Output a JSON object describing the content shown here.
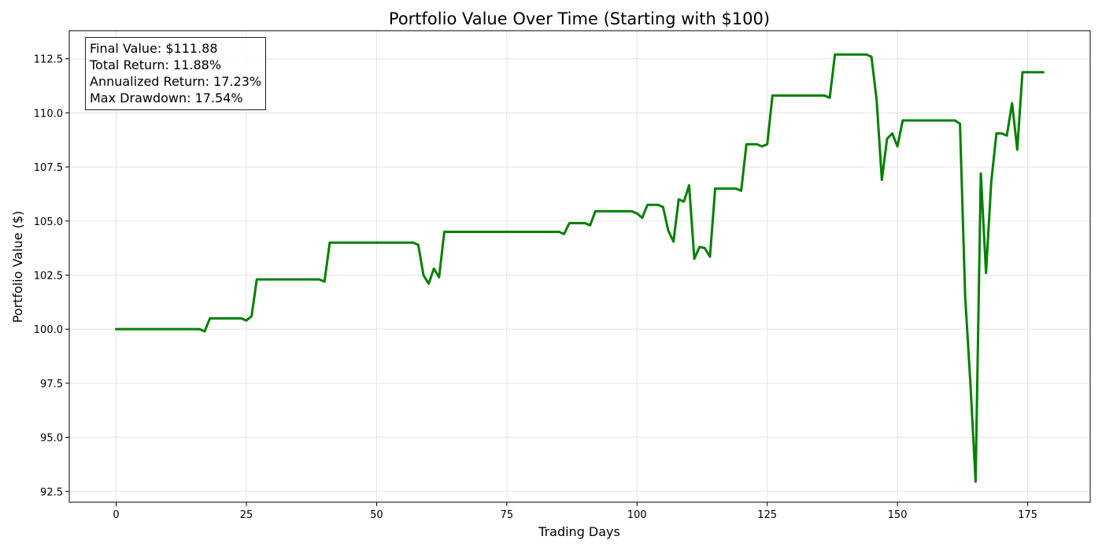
{
  "chart_data": {
    "type": "line",
    "title": "Portfolio Value Over Time (Starting with $100)",
    "xlabel": "Trading Days",
    "ylabel": "Portfolio Value ($)",
    "xlim": [
      -9,
      187
    ],
    "ylim": [
      92.0,
      113.8
    ],
    "x_ticks": [
      0,
      25,
      50,
      75,
      100,
      125,
      150,
      175
    ],
    "y_ticks": [
      92.5,
      95.0,
      97.5,
      100.0,
      102.5,
      105.0,
      107.5,
      110.0,
      112.5
    ],
    "y_tick_labels": [
      "92.5",
      "95.0",
      "97.5",
      "100.0",
      "102.5",
      "105.0",
      "107.5",
      "110.0",
      "112.5"
    ],
    "grid": true,
    "line_color": "#008000",
    "annotation_lines": [
      "Final Value: $111.88",
      "Total Return: 11.88%",
      "Annualized Return: 17.23%",
      "Max Drawdown: 17.54%"
    ],
    "annotation_position": "top-left",
    "series": [
      {
        "x": [
          0,
          16,
          17,
          18,
          24,
          25,
          26,
          27,
          39,
          40,
          41,
          57,
          58,
          59,
          60,
          61,
          62,
          63,
          85,
          86,
          87,
          90,
          91,
          92,
          99,
          100,
          101,
          102,
          104,
          105,
          106,
          107,
          108,
          109,
          110,
          111,
          112,
          113,
          114,
          115,
          119,
          120,
          121,
          123,
          124,
          125,
          126,
          136,
          137,
          138,
          144,
          145,
          146,
          147,
          148,
          149,
          150,
          151,
          161,
          162,
          163,
          164,
          165,
          166,
          167,
          168,
          169,
          170,
          171,
          172,
          173,
          174,
          178
        ],
        "values": [
          100.0,
          100.0,
          99.9,
          100.5,
          100.5,
          100.4,
          100.6,
          102.3,
          102.3,
          102.2,
          104.0,
          104.0,
          103.9,
          102.5,
          102.1,
          102.8,
          102.4,
          104.5,
          104.5,
          104.4,
          104.9,
          104.9,
          104.8,
          105.45,
          105.45,
          105.35,
          105.15,
          105.75,
          105.75,
          105.65,
          104.55,
          104.05,
          106.0,
          105.9,
          106.65,
          103.25,
          103.8,
          103.75,
          103.35,
          106.5,
          106.5,
          106.4,
          108.55,
          108.55,
          108.45,
          108.55,
          110.8,
          110.8,
          110.7,
          112.7,
          112.7,
          112.6,
          110.6,
          106.9,
          108.8,
          109.05,
          108.45,
          109.65,
          109.65,
          109.5,
          101.5,
          97.5,
          92.95,
          107.2,
          102.6,
          106.8,
          109.05,
          109.05,
          108.95,
          110.45,
          108.3,
          111.88,
          111.88
        ]
      }
    ]
  }
}
